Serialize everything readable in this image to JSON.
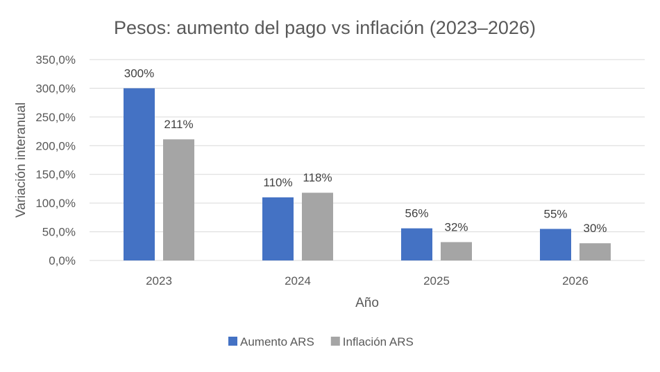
{
  "chart_data": {
    "type": "bar",
    "title": "Pesos: aumento del pago vs inflación (2023–2026)",
    "xlabel": "Año",
    "ylabel": "Variación interanual",
    "categories": [
      "2023",
      "2024",
      "2025",
      "2026"
    ],
    "ylim": [
      0,
      350
    ],
    "yticks": [
      0,
      50,
      100,
      150,
      200,
      250,
      300,
      350
    ],
    "ytick_labels": [
      "0,0%",
      "50,0%",
      "100,0%",
      "150,0%",
      "200,0%",
      "250,0%",
      "300,0%",
      "350,0%"
    ],
    "series": [
      {
        "name": "Aumento ARS",
        "color": "#4472C4",
        "values": [
          300,
          110,
          56,
          55
        ],
        "data_labels": [
          "300%",
          "110%",
          "56%",
          "55%"
        ]
      },
      {
        "name": "Inflación ARS",
        "color": "#A5A5A5",
        "values": [
          211,
          118,
          32,
          30
        ],
        "data_labels": [
          "211%",
          "118%",
          "32%",
          "30%"
        ]
      }
    ],
    "grid": true,
    "legend_position": "bottom"
  }
}
